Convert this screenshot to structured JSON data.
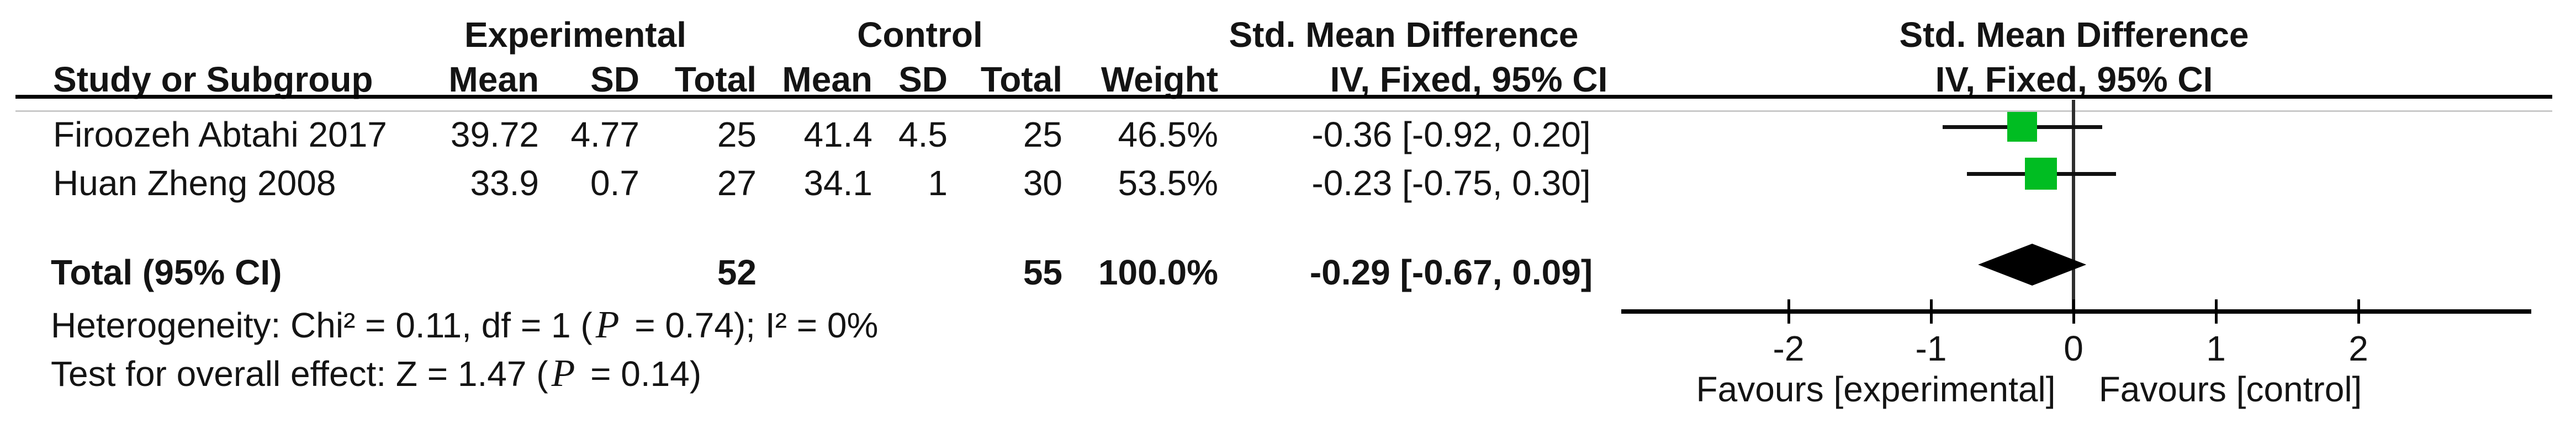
{
  "table": {
    "group_headers": {
      "experimental": "Experimental",
      "control": "Control",
      "smd_left": "Std. Mean Difference",
      "smd_right": "Std. Mean Difference"
    },
    "col_headers": {
      "study": "Study or Subgroup",
      "mean_exp": "Mean",
      "sd_exp": "SD",
      "total_exp": "Total",
      "mean_ctrl": "Mean",
      "sd_ctrl": "SD",
      "total_ctrl": "Total",
      "weight": "Weight",
      "ci_left": "IV, Fixed, 95% CI",
      "ci_right": "IV, Fixed, 95% CI"
    },
    "footer": {
      "heterogeneity_pre": "Heterogeneity: Chi² = 0.11, df = 1 (",
      "heterogeneity_p": "P",
      "heterogeneity_post": " = 0.74); I² = 0%",
      "overall_pre": "Test for overall effect: Z = 1.47 (",
      "overall_p": "P",
      "overall_post": " = 0.14)"
    }
  },
  "chart_data": {
    "type": "forest",
    "effect_measure": "Std. Mean Difference",
    "method": "IV, Fixed, 95% CI",
    "studies": [
      {
        "name": "Firoozeh Abtahi 2017",
        "mean_exp": "39.72",
        "sd_exp": "4.77",
        "total_exp": "25",
        "mean_ctrl": "41.4",
        "sd_ctrl": "4.5",
        "total_ctrl": "25",
        "weight": "46.5%",
        "smd": -0.36,
        "ci_low": -0.92,
        "ci_high": 0.2,
        "ci_text": "-0.36 [-0.92, 0.20]"
      },
      {
        "name": "Huan Zheng 2008",
        "mean_exp": "33.9",
        "sd_exp": "0.7",
        "total_exp": "27",
        "mean_ctrl": "34.1",
        "sd_ctrl": "1",
        "total_ctrl": "30",
        "weight": "53.5%",
        "smd": -0.23,
        "ci_low": -0.75,
        "ci_high": 0.3,
        "ci_text": "-0.23 [-0.75, 0.30]"
      }
    ],
    "total": {
      "label": "Total (95% CI)",
      "total_exp": "52",
      "total_ctrl": "55",
      "weight": "100.0%",
      "smd": -0.29,
      "ci_low": -0.67,
      "ci_high": 0.09,
      "ci_text": "-0.29 [-0.67, 0.09]"
    },
    "axis_ticks": [
      -2,
      -1,
      0,
      1,
      2
    ],
    "axis_range": [
      -2,
      2
    ],
    "favours_left": "Favours [experimental]",
    "favours_right": "Favours [control]",
    "marker_color": "#00bd22",
    "marker_px": [
      54,
      58
    ],
    "grid": false,
    "xlabel": "",
    "ylabel": "",
    "title": ""
  }
}
